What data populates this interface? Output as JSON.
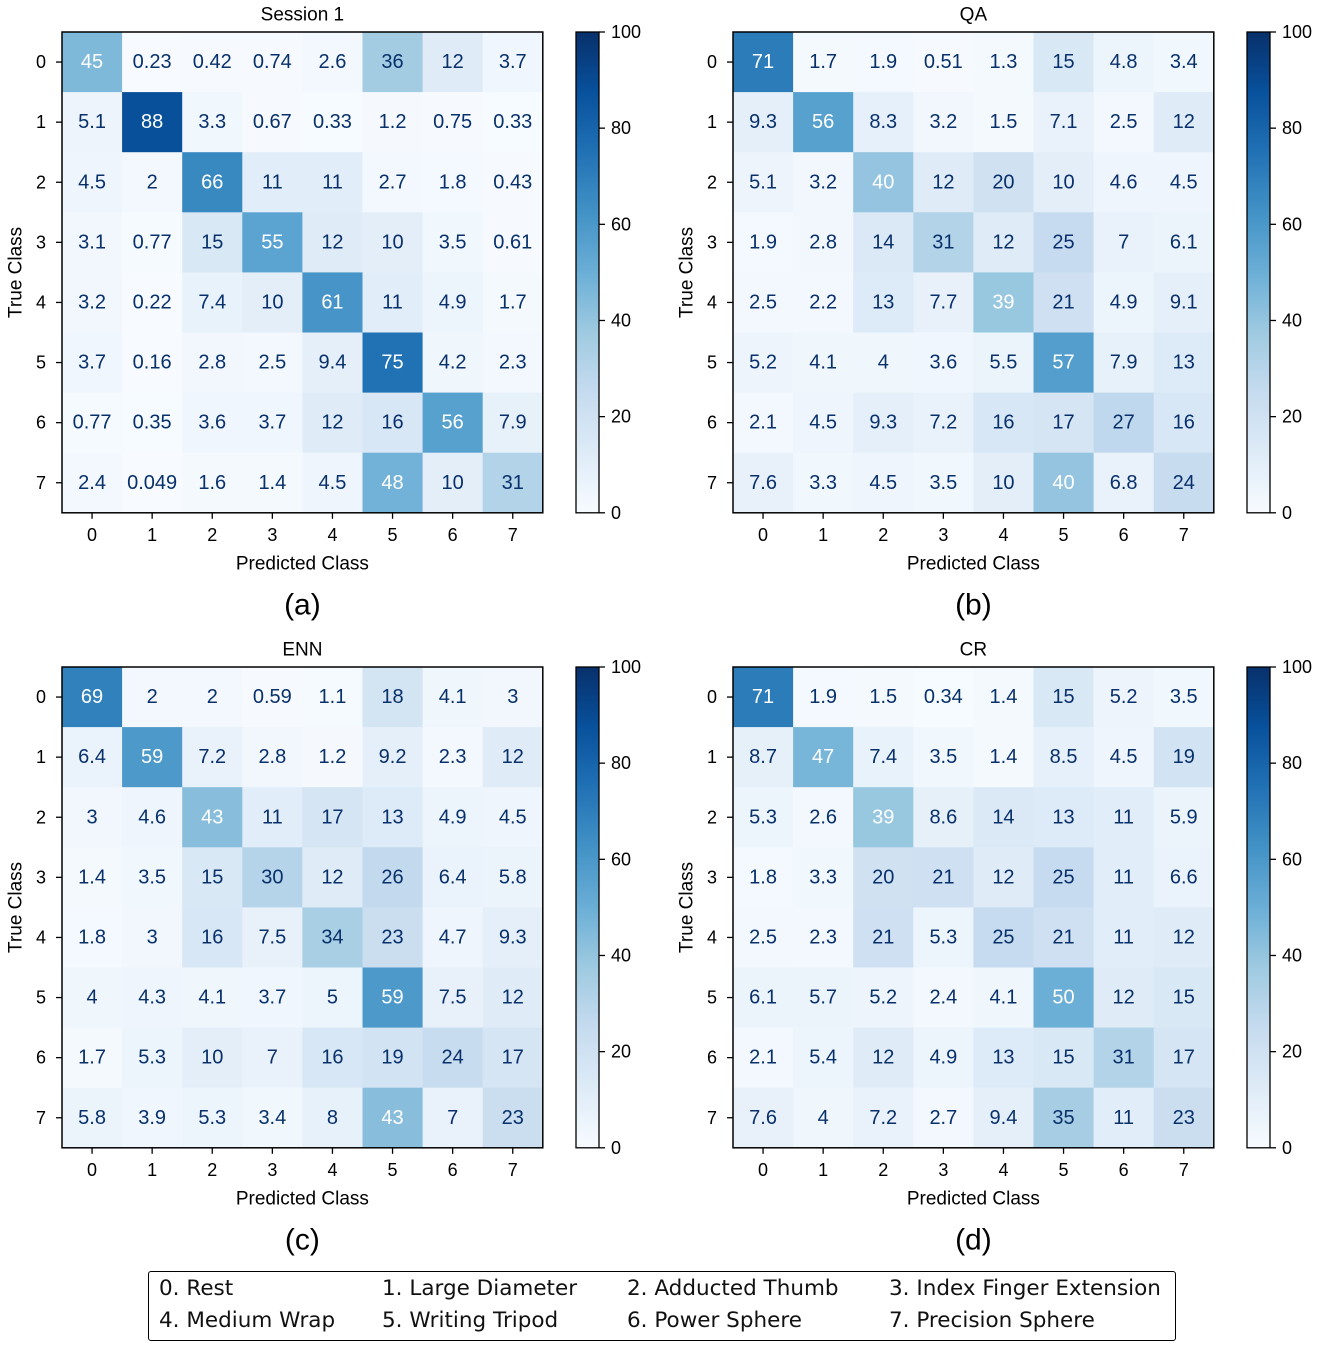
{
  "chart_data": [
    {
      "type": "heatmap",
      "panel_label": "(a)",
      "title": "Session 1",
      "xlabel": "Predicted Class",
      "ylabel": "True Class",
      "x_categories": [
        "0",
        "1",
        "2",
        "3",
        "4",
        "5",
        "6",
        "7"
      ],
      "y_categories": [
        "0",
        "1",
        "2",
        "3",
        "4",
        "5",
        "6",
        "7"
      ],
      "values": [
        [
          "45",
          "0.23",
          "0.42",
          "0.74",
          "2.6",
          "36",
          "12",
          "3.7"
        ],
        [
          "5.1",
          "88",
          "3.3",
          "0.67",
          "0.33",
          "1.2",
          "0.75",
          "0.33"
        ],
        [
          "4.5",
          "2",
          "66",
          "11",
          "11",
          "2.7",
          "1.8",
          "0.43"
        ],
        [
          "3.1",
          "0.77",
          "15",
          "55",
          "12",
          "10",
          "3.5",
          "0.61"
        ],
        [
          "3.2",
          "0.22",
          "7.4",
          "10",
          "61",
          "11",
          "4.9",
          "1.7"
        ],
        [
          "3.7",
          "0.16",
          "2.8",
          "2.5",
          "9.4",
          "75",
          "4.2",
          "2.3"
        ],
        [
          "0.77",
          "0.35",
          "3.6",
          "3.7",
          "12",
          "16",
          "56",
          "7.9"
        ],
        [
          "2.4",
          "0.049",
          "1.6",
          "1.4",
          "4.5",
          "48",
          "10",
          "31"
        ]
      ],
      "colorbar": {
        "min": 0,
        "max": 100,
        "ticks": [
          "0",
          "20",
          "40",
          "60",
          "80",
          "100"
        ]
      },
      "colormap": "Blues"
    },
    {
      "type": "heatmap",
      "panel_label": "(b)",
      "title": "QA",
      "xlabel": "Predicted Class",
      "ylabel": "True Class",
      "x_categories": [
        "0",
        "1",
        "2",
        "3",
        "4",
        "5",
        "6",
        "7"
      ],
      "y_categories": [
        "0",
        "1",
        "2",
        "3",
        "4",
        "5",
        "6",
        "7"
      ],
      "values": [
        [
          "71",
          "1.7",
          "1.9",
          "0.51",
          "1.3",
          "15",
          "4.8",
          "3.4"
        ],
        [
          "9.3",
          "56",
          "8.3",
          "3.2",
          "1.5",
          "7.1",
          "2.5",
          "12"
        ],
        [
          "5.1",
          "3.2",
          "40",
          "12",
          "20",
          "10",
          "4.6",
          "4.5"
        ],
        [
          "1.9",
          "2.8",
          "14",
          "31",
          "12",
          "25",
          "7",
          "6.1"
        ],
        [
          "2.5",
          "2.2",
          "13",
          "7.7",
          "39",
          "21",
          "4.9",
          "9.1"
        ],
        [
          "5.2",
          "4.1",
          "4",
          "3.6",
          "5.5",
          "57",
          "7.9",
          "13"
        ],
        [
          "2.1",
          "4.5",
          "9.3",
          "7.2",
          "16",
          "17",
          "27",
          "16"
        ],
        [
          "7.6",
          "3.3",
          "4.5",
          "3.5",
          "10",
          "40",
          "6.8",
          "24"
        ]
      ],
      "colorbar": {
        "min": 0,
        "max": 100,
        "ticks": [
          "0",
          "20",
          "40",
          "60",
          "80",
          "100"
        ]
      },
      "colormap": "Blues"
    },
    {
      "type": "heatmap",
      "panel_label": "(c)",
      "title": "ENN",
      "xlabel": "Predicted Class",
      "ylabel": "True Class",
      "x_categories": [
        "0",
        "1",
        "2",
        "3",
        "4",
        "5",
        "6",
        "7"
      ],
      "y_categories": [
        "0",
        "1",
        "2",
        "3",
        "4",
        "5",
        "6",
        "7"
      ],
      "values": [
        [
          "69",
          "2",
          "2",
          "0.59",
          "1.1",
          "18",
          "4.1",
          "3"
        ],
        [
          "6.4",
          "59",
          "7.2",
          "2.8",
          "1.2",
          "9.2",
          "2.3",
          "12"
        ],
        [
          "3",
          "4.6",
          "43",
          "11",
          "17",
          "13",
          "4.9",
          "4.5"
        ],
        [
          "1.4",
          "3.5",
          "15",
          "30",
          "12",
          "26",
          "6.4",
          "5.8"
        ],
        [
          "1.8",
          "3",
          "16",
          "7.5",
          "34",
          "23",
          "4.7",
          "9.3"
        ],
        [
          "4",
          "4.3",
          "4.1",
          "3.7",
          "5",
          "59",
          "7.5",
          "12"
        ],
        [
          "1.7",
          "5.3",
          "10",
          "7",
          "16",
          "19",
          "24",
          "17"
        ],
        [
          "5.8",
          "3.9",
          "5.3",
          "3.4",
          "8",
          "43",
          "7",
          "23"
        ]
      ],
      "colorbar": {
        "min": 0,
        "max": 100,
        "ticks": [
          "0",
          "20",
          "40",
          "60",
          "80",
          "100"
        ]
      },
      "colormap": "Blues"
    },
    {
      "type": "heatmap",
      "panel_label": "(d)",
      "title": "CR",
      "xlabel": "Predicted Class",
      "ylabel": "True Class",
      "x_categories": [
        "0",
        "1",
        "2",
        "3",
        "4",
        "5",
        "6",
        "7"
      ],
      "y_categories": [
        "0",
        "1",
        "2",
        "3",
        "4",
        "5",
        "6",
        "7"
      ],
      "values": [
        [
          "71",
          "1.9",
          "1.5",
          "0.34",
          "1.4",
          "15",
          "5.2",
          "3.5"
        ],
        [
          "8.7",
          "47",
          "7.4",
          "3.5",
          "1.4",
          "8.5",
          "4.5",
          "19"
        ],
        [
          "5.3",
          "2.6",
          "39",
          "8.6",
          "14",
          "13",
          "11",
          "5.9"
        ],
        [
          "1.8",
          "3.3",
          "20",
          "21",
          "12",
          "25",
          "11",
          "6.6"
        ],
        [
          "2.5",
          "2.3",
          "21",
          "5.3",
          "25",
          "21",
          "11",
          "12"
        ],
        [
          "6.1",
          "5.7",
          "5.2",
          "2.4",
          "4.1",
          "50",
          "12",
          "15"
        ],
        [
          "2.1",
          "5.4",
          "12",
          "4.9",
          "13",
          "15",
          "31",
          "17"
        ],
        [
          "7.6",
          "4",
          "7.2",
          "2.7",
          "9.4",
          "35",
          "11",
          "23"
        ]
      ],
      "colorbar": {
        "min": 0,
        "max": 100,
        "ticks": [
          "0",
          "20",
          "40",
          "60",
          "80",
          "100"
        ]
      },
      "colormap": "Blues"
    }
  ],
  "legend": [
    "0. Rest",
    "1. Large Diameter",
    "2. Adducted Thumb",
    "3. Index Finger Extension",
    "4. Medium Wrap",
    "5. Writing Tripod",
    "6. Power Sphere",
    "7. Precision Sphere"
  ]
}
